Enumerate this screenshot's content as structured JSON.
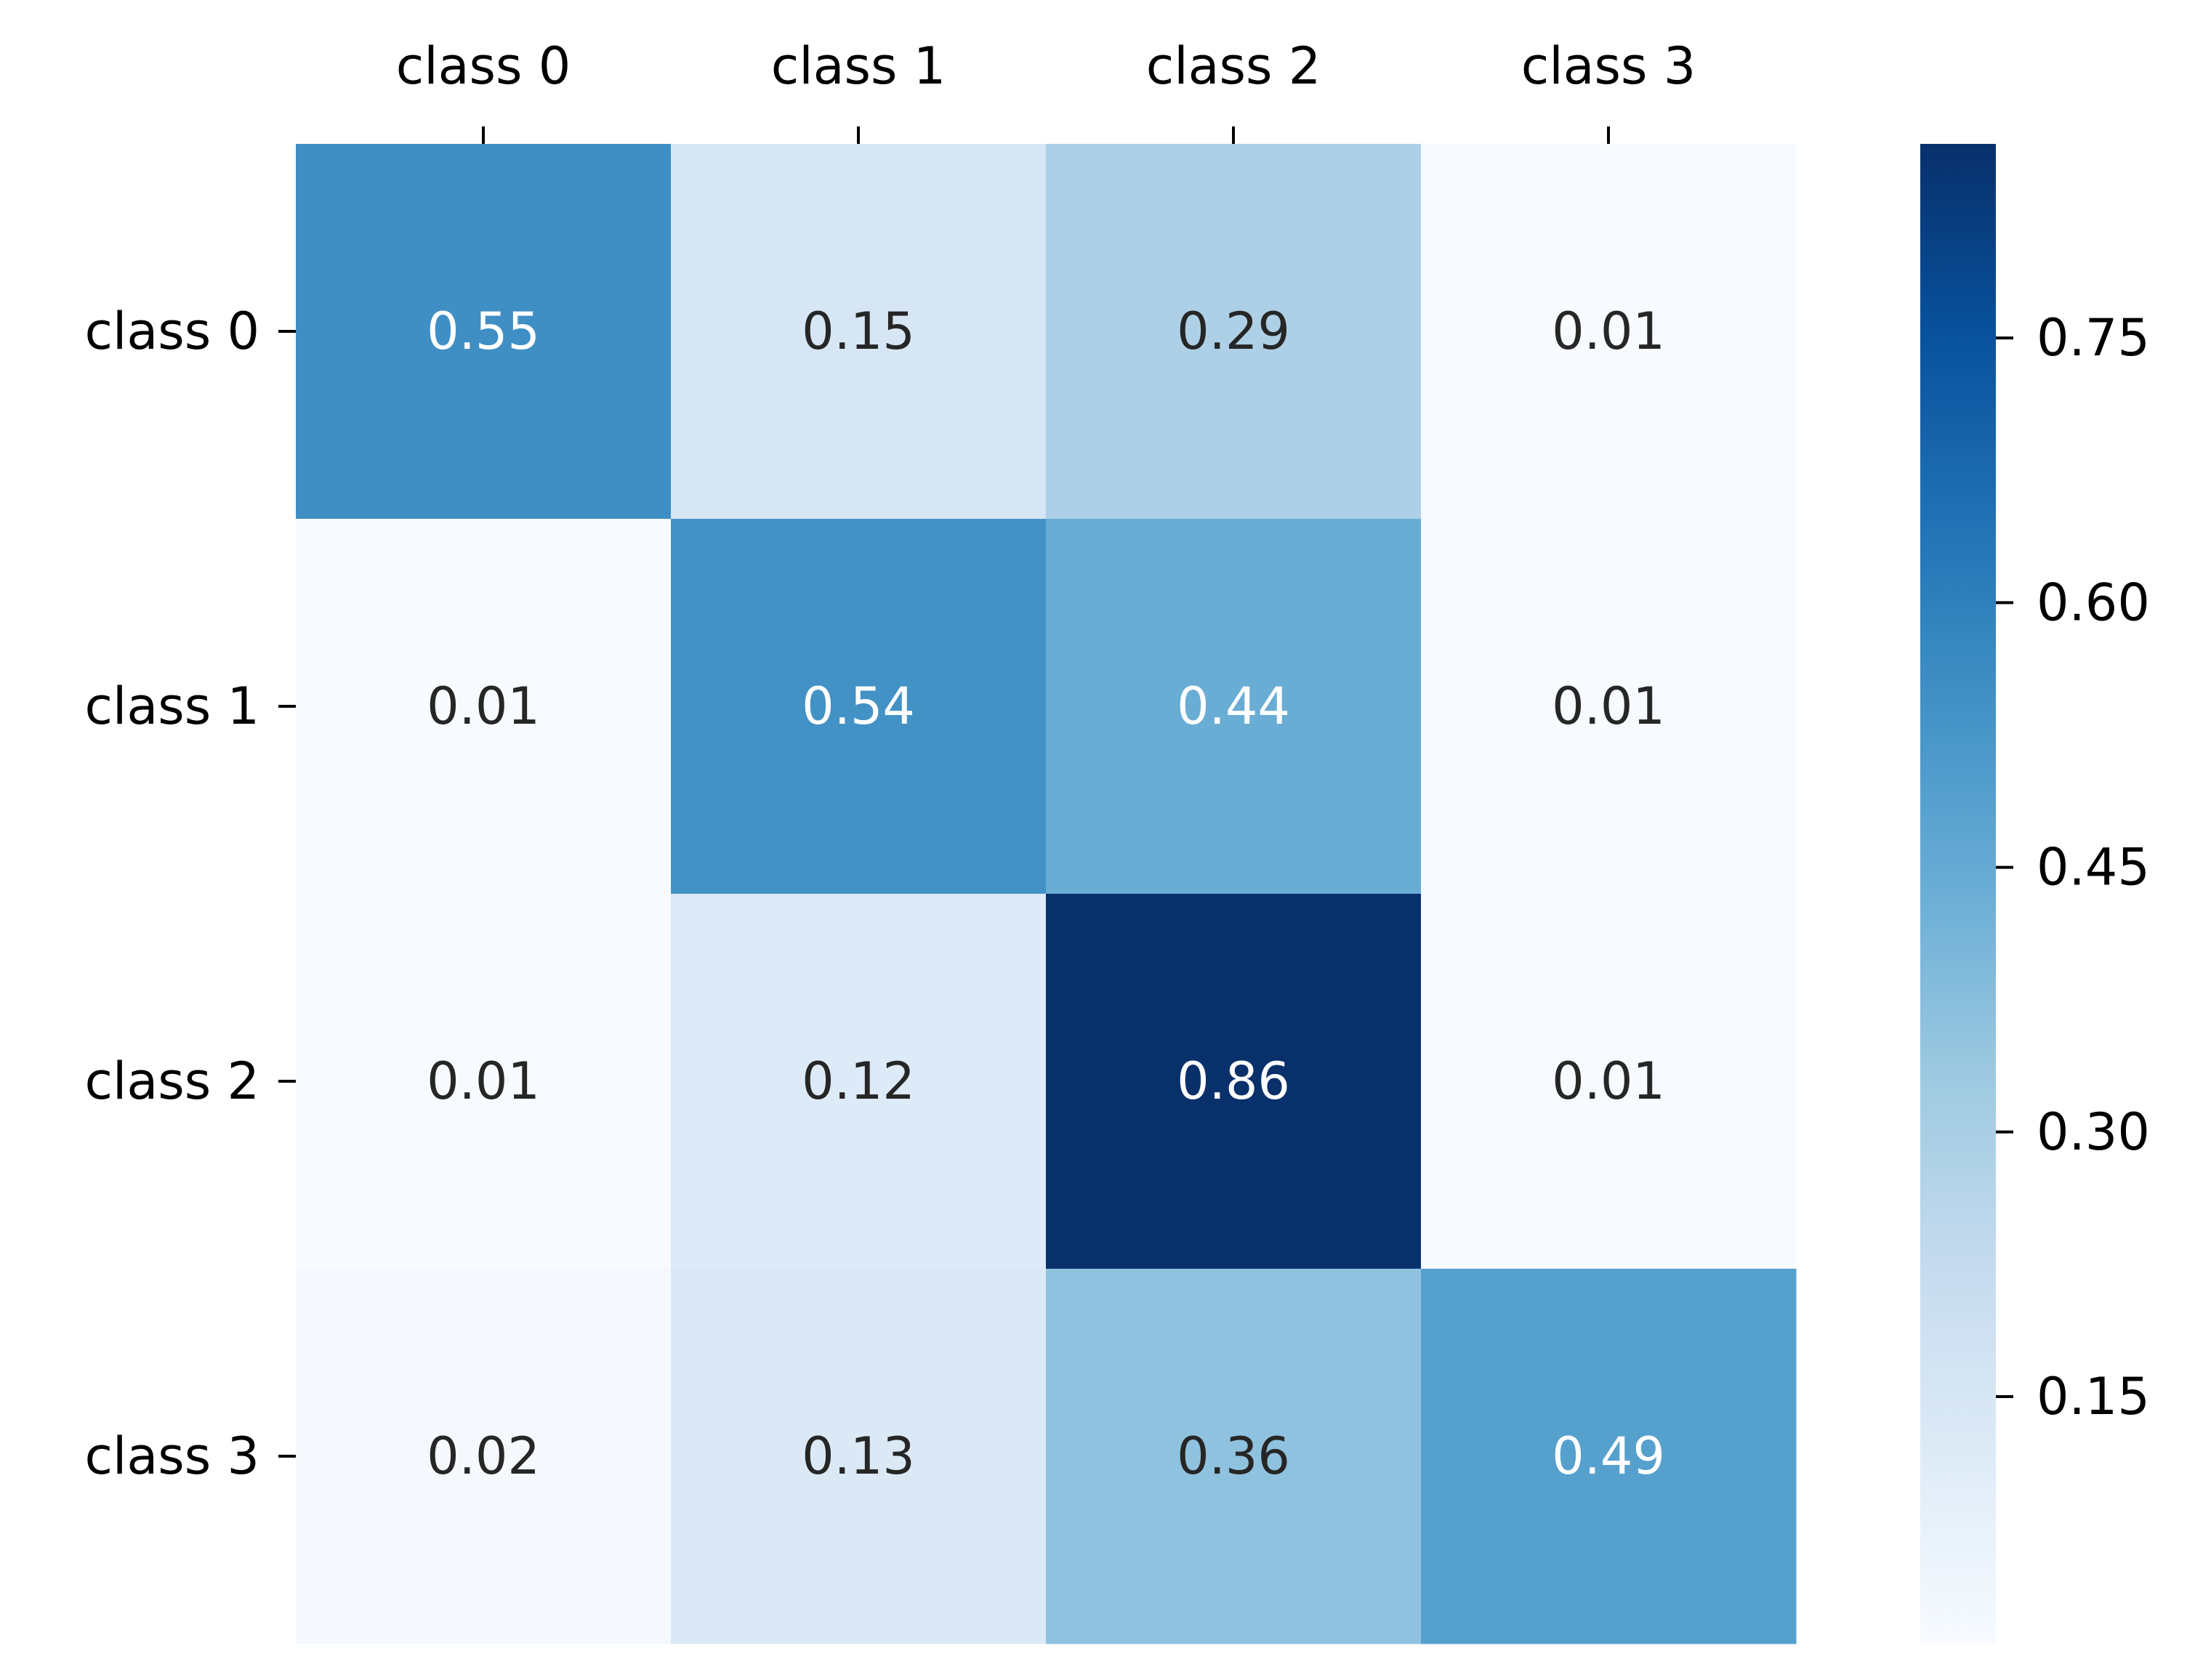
{
  "chart_data": {
    "type": "heatmap",
    "title": "",
    "xlabel": "",
    "ylabel": "",
    "x_categories": [
      "class 0",
      "class 1",
      "class 2",
      "class 3"
    ],
    "y_categories": [
      "class 0",
      "class 1",
      "class 2",
      "class 3"
    ],
    "x_tick_position": "top",
    "values": [
      [
        0.55,
        0.15,
        0.29,
        0.01
      ],
      [
        0.01,
        0.54,
        0.44,
        0.01
      ],
      [
        0.01,
        0.12,
        0.86,
        0.01
      ],
      [
        0.02,
        0.13,
        0.36,
        0.49
      ]
    ],
    "annotations": [
      [
        "0.55",
        "0.15",
        "0.29",
        "0.01"
      ],
      [
        "0.01",
        "0.54",
        "0.44",
        "0.01"
      ],
      [
        "0.01",
        "0.12",
        "0.86",
        "0.01"
      ],
      [
        "0.02",
        "0.13",
        "0.36",
        "0.49"
      ]
    ],
    "colormap": "Blues",
    "colormap_stops": [
      "#f7fbff",
      "#deebf7",
      "#c6dbef",
      "#9ecae1",
      "#6baed6",
      "#4292c6",
      "#2171b5",
      "#08519c",
      "#08306b"
    ],
    "annotation_colors": {
      "light_cell": "#262626",
      "dark_cell": "#ffffff"
    },
    "colorbar": {
      "range": [
        0.01,
        0.86
      ],
      "ticks": [
        0.15,
        0.3,
        0.45,
        0.6,
        0.75
      ],
      "tick_labels": [
        "0.15",
        "0.30",
        "0.45",
        "0.60",
        "0.75"
      ]
    },
    "grid": false,
    "legend": "colorbar-right"
  }
}
